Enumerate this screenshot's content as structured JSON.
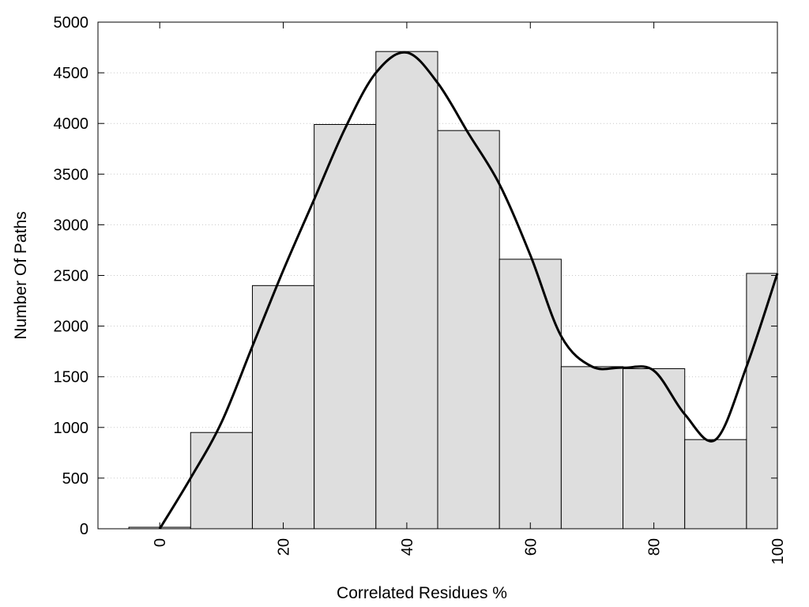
{
  "chart_data": {
    "type": "bar",
    "title": "",
    "xlabel": "Correlated Residues %",
    "ylabel": "Number Of Paths",
    "x": [
      0,
      10,
      20,
      30,
      40,
      50,
      60,
      70,
      80,
      90,
      100
    ],
    "values": [
      15,
      950,
      2400,
      3990,
      4710,
      3930,
      2660,
      1600,
      1580,
      880,
      2520
    ],
    "bin_width": 10,
    "xlim": [
      -10,
      100
    ],
    "ylim": [
      0,
      5000
    ],
    "xticks": [
      0,
      20,
      40,
      60,
      80,
      100
    ],
    "yticks": [
      0,
      500,
      1000,
      1500,
      2000,
      2500,
      3000,
      3500,
      4000,
      4500,
      5000
    ],
    "grid": "horizontal dotted",
    "bar_color": "#dedede",
    "curve": {
      "x": [
        0,
        5,
        10,
        15,
        20,
        25,
        30,
        35,
        40,
        45,
        50,
        55,
        60,
        65,
        70,
        75,
        80,
        85,
        90,
        95,
        100
      ],
      "y": [
        0,
        500,
        1050,
        1800,
        2550,
        3250,
        3950,
        4500,
        4700,
        4400,
        3900,
        3400,
        2700,
        1900,
        1600,
        1590,
        1560,
        1130,
        880,
        1600,
        2520
      ]
    }
  }
}
